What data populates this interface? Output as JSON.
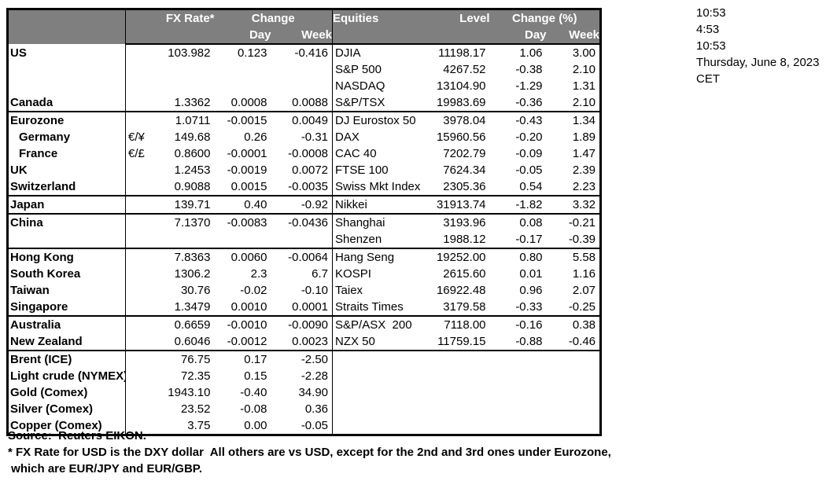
{
  "table": {
    "header": {
      "fx_rate": "FX Rate*",
      "change": "Change",
      "day": "Day",
      "week": "Week",
      "equities": "Equities",
      "level": "Level",
      "change_pct": "Change (%)"
    },
    "rows": [
      {
        "country": "US",
        "symbol": "",
        "rate": "103.982",
        "day": "0.123",
        "week": "-0.416",
        "equity": "DJIA",
        "level": "11198.17",
        "eq_day": "1.06",
        "eq_week": "3.00",
        "section": false,
        "indent": false
      },
      {
        "country": "",
        "symbol": "",
        "rate": "",
        "day": "",
        "week": "",
        "equity": "S&P 500",
        "level": "4267.52",
        "eq_day": "-0.38",
        "eq_week": "2.10",
        "section": false,
        "indent": false
      },
      {
        "country": "",
        "symbol": "",
        "rate": "",
        "day": "",
        "week": "",
        "equity": "NASDAQ",
        "level": "13104.90",
        "eq_day": "-1.29",
        "eq_week": "1.31",
        "section": false,
        "indent": false
      },
      {
        "country": "Canada",
        "symbol": "",
        "rate": "1.3362",
        "day": "0.0008",
        "week": "0.0088",
        "equity": "S&P/TSX",
        "level": "19983.69",
        "eq_day": "-0.36",
        "eq_week": "2.10",
        "section": false,
        "indent": false
      },
      {
        "country": "Eurozone",
        "symbol": "",
        "rate": "1.0711",
        "day": "-0.0015",
        "week": "0.0049",
        "equity": "DJ Eurostox 50",
        "level": "3978.04",
        "eq_day": "-0.43",
        "eq_week": "1.34",
        "section": true,
        "indent": false
      },
      {
        "country": "Germany",
        "symbol": "€/¥",
        "rate": "149.68",
        "day": "0.26",
        "week": "-0.31",
        "equity": "DAX",
        "level": "15960.56",
        "eq_day": "-0.20",
        "eq_week": "1.89",
        "section": false,
        "indent": true
      },
      {
        "country": "France",
        "symbol": "€/£",
        "rate": "0.8600",
        "day": "-0.0001",
        "week": "-0.0008",
        "equity": "CAC 40",
        "level": "7202.79",
        "eq_day": "-0.09",
        "eq_week": "1.47",
        "section": false,
        "indent": true
      },
      {
        "country": "UK",
        "symbol": "",
        "rate": "1.2453",
        "day": "-0.0019",
        "week": "0.0072",
        "equity": "FTSE 100",
        "level": "7624.34",
        "eq_day": "-0.05",
        "eq_week": "2.39",
        "section": false,
        "indent": false
      },
      {
        "country": "Switzerland",
        "symbol": "",
        "rate": "0.9088",
        "day": "0.0015",
        "week": "-0.0035",
        "equity": "Swiss Mkt Index",
        "level": "2305.36",
        "eq_day": "0.54",
        "eq_week": "2.23",
        "section": false,
        "indent": false
      },
      {
        "country": "Japan",
        "symbol": "",
        "rate": "139.71",
        "day": "0.40",
        "week": "-0.92",
        "equity": "Nikkei",
        "level": "31913.74",
        "eq_day": "-1.82",
        "eq_week": "3.32",
        "section": true,
        "indent": false
      },
      {
        "country": "China",
        "symbol": "",
        "rate": "7.1370",
        "day": "-0.0083",
        "week": "-0.0436",
        "equity": "Shanghai",
        "level": "3193.96",
        "eq_day": "0.08",
        "eq_week": "-0.21",
        "section": true,
        "indent": false
      },
      {
        "country": "",
        "symbol": "",
        "rate": "",
        "day": "",
        "week": "",
        "equity": "Shenzen",
        "level": "1988.12",
        "eq_day": "-0.17",
        "eq_week": "-0.39",
        "section": false,
        "indent": false
      },
      {
        "country": "Hong Kong",
        "symbol": "",
        "rate": "7.8363",
        "day": "0.0060",
        "week": "-0.0064",
        "equity": "Hang Seng",
        "level": "19252.00",
        "eq_day": "0.80",
        "eq_week": "5.58",
        "section": true,
        "indent": false
      },
      {
        "country": "South Korea",
        "symbol": "",
        "rate": "1306.2",
        "day": "2.3",
        "week": "6.7",
        "equity": "KOSPI",
        "level": "2615.60",
        "eq_day": "0.01",
        "eq_week": "1.16",
        "section": false,
        "indent": false
      },
      {
        "country": "Taiwan",
        "symbol": "",
        "rate": "30.76",
        "day": "-0.02",
        "week": "-0.10",
        "equity": "Taiex",
        "level": "16922.48",
        "eq_day": "0.96",
        "eq_week": "2.07",
        "section": false,
        "indent": false
      },
      {
        "country": "Singapore",
        "symbol": "",
        "rate": "1.3479",
        "day": "0.0010",
        "week": "0.0001",
        "equity": "Straits Times",
        "level": "3179.58",
        "eq_day": "-0.33",
        "eq_week": "-0.25",
        "section": false,
        "indent": false
      },
      {
        "country": "Australia",
        "symbol": "",
        "rate": "0.6659",
        "day": "-0.0010",
        "week": "-0.0090",
        "equity": "S&P/ASX  200",
        "level": "7118.00",
        "eq_day": "-0.16",
        "eq_week": "0.38",
        "section": true,
        "indent": false
      },
      {
        "country": "New Zealand",
        "symbol": "",
        "rate": "0.6046",
        "day": "-0.0012",
        "week": "0.0023",
        "equity": "NZX 50",
        "level": "11759.15",
        "eq_day": "-0.88",
        "eq_week": "-0.46",
        "section": false,
        "indent": false
      },
      {
        "country": "Brent (ICE)",
        "symbol": "",
        "rate": "76.75",
        "day": "0.17",
        "week": "-2.50",
        "equity": "",
        "level": "",
        "eq_day": "",
        "eq_week": "",
        "section": true,
        "indent": false
      },
      {
        "country": "Light crude (NYMEX)",
        "symbol": "",
        "rate": "72.35",
        "day": "0.15",
        "week": "-2.28",
        "equity": "",
        "level": "",
        "eq_day": "",
        "eq_week": "",
        "section": false,
        "indent": false
      },
      {
        "country": "Gold (Comex)",
        "symbol": "",
        "rate": "1943.10",
        "day": "-0.40",
        "week": "34.90",
        "equity": "",
        "level": "",
        "eq_day": "",
        "eq_week": "",
        "section": false,
        "indent": false
      },
      {
        "country": "Silver (Comex)",
        "symbol": "",
        "rate": "23.52",
        "day": "-0.08",
        "week": "0.36",
        "equity": "",
        "level": "",
        "eq_day": "",
        "eq_week": "",
        "section": false,
        "indent": false
      },
      {
        "country": "Copper (Comex)",
        "symbol": "",
        "rate": "3.75",
        "day": "0.00",
        "week": "-0.05",
        "equity": "",
        "level": "",
        "eq_day": "",
        "eq_week": "",
        "section": false,
        "indent": false
      }
    ]
  },
  "info": {
    "lines": [
      "10:53",
      "4:53",
      "10:53",
      "Thursday, June 8, 2023",
      "CET"
    ]
  },
  "footer": {
    "lines": [
      "Source:  Reuters EIKON.",
      "* FX Rate for USD is the DXY dollar  All others are vs USD, except for the 2nd and 3rd ones under Eurozone,",
      " which are EUR/JPY and EUR/GBP."
    ]
  },
  "colors": {
    "header_bg": "#7f7f7f",
    "header_text": "#ffffff",
    "border": "#000000"
  }
}
